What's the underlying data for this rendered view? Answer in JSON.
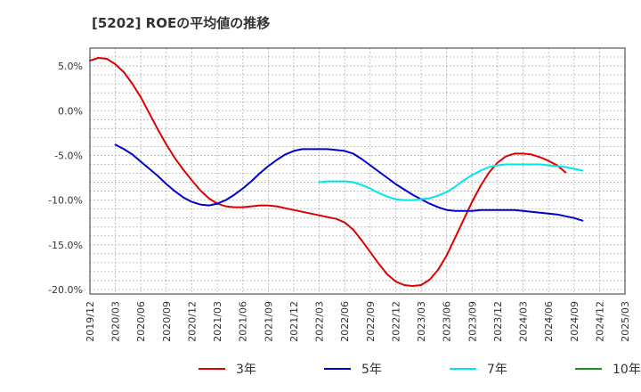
{
  "chart_data": {
    "type": "line",
    "title": "[5202]  ROEの平均値の推移",
    "xlabel": "",
    "ylabel": "",
    "ylim": [
      -20.5,
      7
    ],
    "yticks": [
      5,
      0,
      -5,
      -10,
      -15,
      -20
    ],
    "ytick_labels": [
      "5.0%",
      "0.0%",
      "-5.0%",
      "-10.0%",
      "-15.0%",
      "-20.0%"
    ],
    "x_start": "2019-12",
    "x_end": "2025-03",
    "xtick_labels": [
      "2019/12",
      "2020/03",
      "2020/06",
      "2020/09",
      "2020/12",
      "2021/03",
      "2021/06",
      "2021/09",
      "2021/12",
      "2022/03",
      "2022/06",
      "2022/09",
      "2022/12",
      "2023/03",
      "2023/06",
      "2023/09",
      "2023/12",
      "2024/03",
      "2024/06",
      "2024/09",
      "2024/12",
      "2025/03"
    ],
    "grid": true,
    "legend_position": "bottom",
    "series": [
      {
        "name": "3年",
        "color": "#dd0000",
        "points": [
          [
            "2019-12",
            5.6
          ],
          [
            "2020-01",
            5.9
          ],
          [
            "2020-02",
            5.8
          ],
          [
            "2020-03",
            5.2
          ],
          [
            "2020-04",
            4.3
          ],
          [
            "2020-05",
            3.0
          ],
          [
            "2020-06",
            1.5
          ],
          [
            "2020-07",
            -0.3
          ],
          [
            "2020-08",
            -2.1
          ],
          [
            "2020-09",
            -3.8
          ],
          [
            "2020-10",
            -5.3
          ],
          [
            "2020-11",
            -6.6
          ],
          [
            "2020-12",
            -7.8
          ],
          [
            "2021-01",
            -8.9
          ],
          [
            "2021-02",
            -9.8
          ],
          [
            "2021-03",
            -10.4
          ],
          [
            "2021-04",
            -10.7
          ],
          [
            "2021-05",
            -10.8
          ],
          [
            "2021-06",
            -10.8
          ],
          [
            "2021-07",
            -10.7
          ],
          [
            "2021-08",
            -10.6
          ],
          [
            "2021-09",
            -10.6
          ],
          [
            "2021-10",
            -10.7
          ],
          [
            "2021-11",
            -10.9
          ],
          [
            "2021-12",
            -11.1
          ],
          [
            "2022-01",
            -11.3
          ],
          [
            "2022-02",
            -11.5
          ],
          [
            "2022-03",
            -11.7
          ],
          [
            "2022-04",
            -11.9
          ],
          [
            "2022-05",
            -12.1
          ],
          [
            "2022-06",
            -12.5
          ],
          [
            "2022-07",
            -13.3
          ],
          [
            "2022-08",
            -14.5
          ],
          [
            "2022-09",
            -15.8
          ],
          [
            "2022-10",
            -17.1
          ],
          [
            "2022-11",
            -18.3
          ],
          [
            "2022-12",
            -19.1
          ],
          [
            "2023-01",
            -19.5
          ],
          [
            "2023-02",
            -19.6
          ],
          [
            "2023-03",
            -19.5
          ],
          [
            "2023-04",
            -18.9
          ],
          [
            "2023-05",
            -17.8
          ],
          [
            "2023-06",
            -16.2
          ],
          [
            "2023-07",
            -14.2
          ],
          [
            "2023-08",
            -12.2
          ],
          [
            "2023-09",
            -10.2
          ],
          [
            "2023-10",
            -8.4
          ],
          [
            "2023-11",
            -6.9
          ],
          [
            "2023-12",
            -5.8
          ],
          [
            "2024-01",
            -5.1
          ],
          [
            "2024-02",
            -4.8
          ],
          [
            "2024-03",
            -4.8
          ],
          [
            "2024-04",
            -4.9
          ],
          [
            "2024-05",
            -5.2
          ],
          [
            "2024-06",
            -5.6
          ],
          [
            "2024-07",
            -6.1
          ],
          [
            "2024-08",
            -6.9
          ]
        ]
      },
      {
        "name": "5年",
        "color": "#0000cc",
        "points": [
          [
            "2020-03",
            -3.8
          ],
          [
            "2020-04",
            -4.3
          ],
          [
            "2020-05",
            -4.9
          ],
          [
            "2020-06",
            -5.7
          ],
          [
            "2020-07",
            -6.5
          ],
          [
            "2020-08",
            -7.3
          ],
          [
            "2020-09",
            -8.2
          ],
          [
            "2020-10",
            -9.0
          ],
          [
            "2020-11",
            -9.7
          ],
          [
            "2020-12",
            -10.2
          ],
          [
            "2021-01",
            -10.5
          ],
          [
            "2021-02",
            -10.6
          ],
          [
            "2021-03",
            -10.4
          ],
          [
            "2021-04",
            -10.0
          ],
          [
            "2021-05",
            -9.4
          ],
          [
            "2021-06",
            -8.7
          ],
          [
            "2021-07",
            -7.9
          ],
          [
            "2021-08",
            -7.0
          ],
          [
            "2021-09",
            -6.2
          ],
          [
            "2021-10",
            -5.5
          ],
          [
            "2021-11",
            -4.9
          ],
          [
            "2021-12",
            -4.5
          ],
          [
            "2022-01",
            -4.3
          ],
          [
            "2022-02",
            -4.3
          ],
          [
            "2022-03",
            -4.3
          ],
          [
            "2022-04",
            -4.3
          ],
          [
            "2022-05",
            -4.4
          ],
          [
            "2022-06",
            -4.5
          ],
          [
            "2022-07",
            -4.8
          ],
          [
            "2022-08",
            -5.4
          ],
          [
            "2022-09",
            -6.1
          ],
          [
            "2022-10",
            -6.8
          ],
          [
            "2022-11",
            -7.5
          ],
          [
            "2022-12",
            -8.2
          ],
          [
            "2023-01",
            -8.8
          ],
          [
            "2023-02",
            -9.4
          ],
          [
            "2023-03",
            -9.9
          ],
          [
            "2023-04",
            -10.4
          ],
          [
            "2023-05",
            -10.8
          ],
          [
            "2023-06",
            -11.1
          ],
          [
            "2023-07",
            -11.2
          ],
          [
            "2023-08",
            -11.2
          ],
          [
            "2023-09",
            -11.2
          ],
          [
            "2023-10",
            -11.1
          ],
          [
            "2023-11",
            -11.1
          ],
          [
            "2023-12",
            -11.1
          ],
          [
            "2024-01",
            -11.1
          ],
          [
            "2024-02",
            -11.1
          ],
          [
            "2024-03",
            -11.2
          ],
          [
            "2024-04",
            -11.3
          ],
          [
            "2024-05",
            -11.4
          ],
          [
            "2024-06",
            -11.5
          ],
          [
            "2024-07",
            -11.6
          ],
          [
            "2024-08",
            -11.8
          ],
          [
            "2024-09",
            -12.0
          ],
          [
            "2024-10",
            -12.3
          ]
        ]
      },
      {
        "name": "7年",
        "color": "#00e5ee",
        "points": [
          [
            "2022-03",
            -8.0
          ],
          [
            "2022-04",
            -7.9
          ],
          [
            "2022-05",
            -7.9
          ],
          [
            "2022-06",
            -7.9
          ],
          [
            "2022-07",
            -8.0
          ],
          [
            "2022-08",
            -8.3
          ],
          [
            "2022-09",
            -8.7
          ],
          [
            "2022-10",
            -9.2
          ],
          [
            "2022-11",
            -9.6
          ],
          [
            "2022-12",
            -9.9
          ],
          [
            "2023-01",
            -10.0
          ],
          [
            "2023-02",
            -10.0
          ],
          [
            "2023-03",
            -9.9
          ],
          [
            "2023-04",
            -9.8
          ],
          [
            "2023-05",
            -9.5
          ],
          [
            "2023-06",
            -9.1
          ],
          [
            "2023-07",
            -8.5
          ],
          [
            "2023-08",
            -7.8
          ],
          [
            "2023-09",
            -7.2
          ],
          [
            "2023-10",
            -6.7
          ],
          [
            "2023-11",
            -6.3
          ],
          [
            "2023-12",
            -6.1
          ],
          [
            "2024-01",
            -6.0
          ],
          [
            "2024-02",
            -6.0
          ],
          [
            "2024-03",
            -6.0
          ],
          [
            "2024-04",
            -6.0
          ],
          [
            "2024-05",
            -6.0
          ],
          [
            "2024-06",
            -6.1
          ],
          [
            "2024-07",
            -6.2
          ],
          [
            "2024-08",
            -6.3
          ],
          [
            "2024-09",
            -6.5
          ],
          [
            "2024-10",
            -6.7
          ]
        ]
      },
      {
        "name": "10年",
        "color": "#228b22",
        "points": []
      }
    ]
  }
}
